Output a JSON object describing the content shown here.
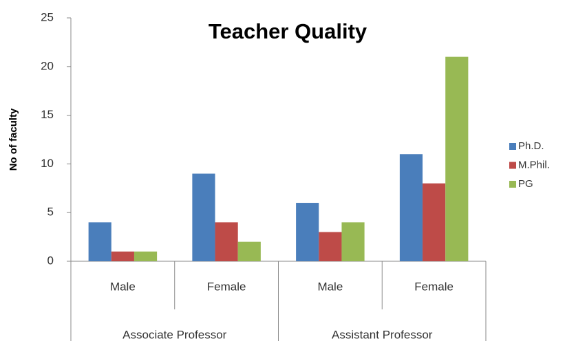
{
  "chart_data": {
    "type": "bar",
    "title": "Teacher Quality",
    "y_label": "No of faculty",
    "categories": [
      "Male",
      "Female",
      "Male",
      "Female"
    ],
    "category_groups": [
      "Associate Professor",
      "Assistant Professor"
    ],
    "series": [
      {
        "name": "Ph.D.",
        "color": "#4a7ebb",
        "values": [
          4,
          9,
          6,
          11
        ]
      },
      {
        "name": "M.Phil.",
        "color": "#be4b48",
        "values": [
          1,
          4,
          3,
          8
        ]
      },
      {
        "name": "PG",
        "color": "#98b954",
        "values": [
          1,
          2,
          4,
          21
        ]
      }
    ],
    "ylim": [
      0,
      25
    ],
    "yticks": [
      0,
      5,
      10,
      15,
      20,
      25
    ],
    "grid": false,
    "legend": "right"
  }
}
